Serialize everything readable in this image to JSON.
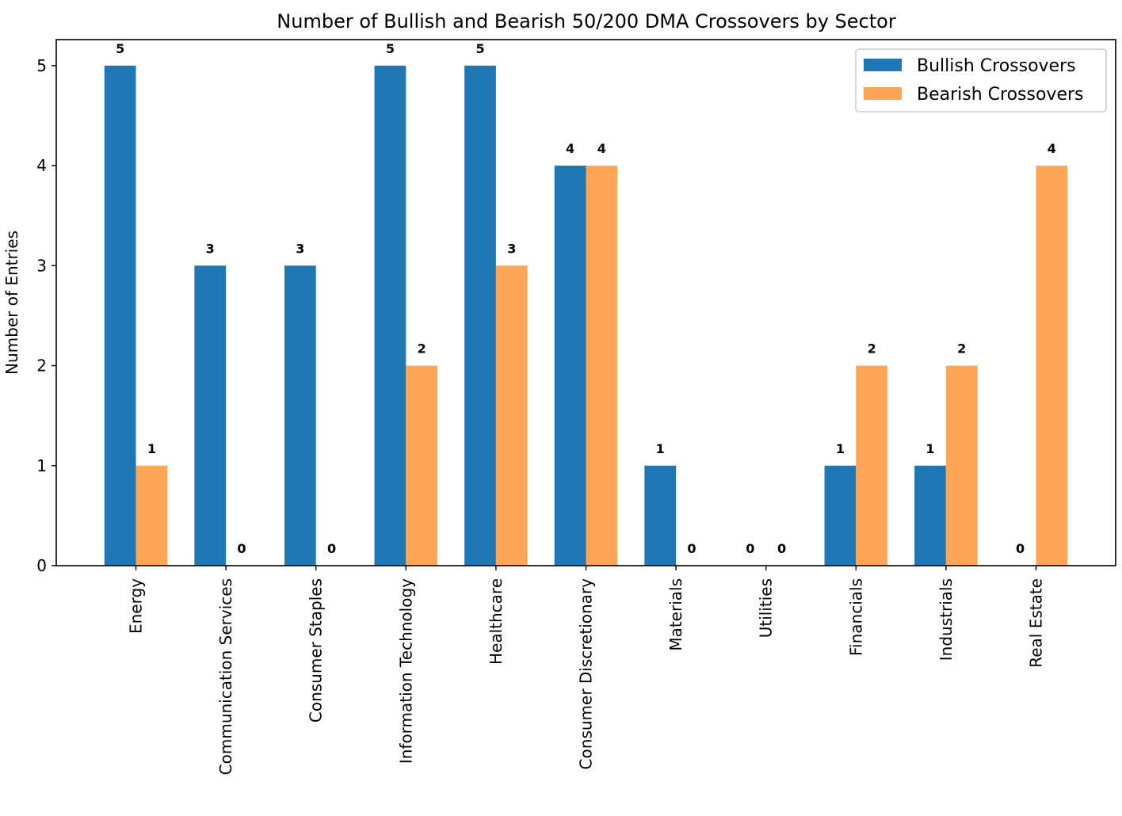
{
  "chart_data": {
    "type": "bar",
    "title": "Number of Bullish and Bearish 50/200 DMA Crossovers by Sector",
    "xlabel": "",
    "ylabel": "Number of Entries",
    "categories": [
      "Energy",
      "Communication Services",
      "Consumer Staples",
      "Information Technology",
      "Healthcare",
      "Consumer Discretionary",
      "Materials",
      "Utilities",
      "Financials",
      "Industrials",
      "Real Estate"
    ],
    "series": [
      {
        "name": "Bullish Crossovers",
        "color": "#1f77b4",
        "values": [
          5,
          3,
          3,
          5,
          5,
          4,
          1,
          0,
          1,
          1,
          0
        ]
      },
      {
        "name": "Bearish Crossovers",
        "color": "#ffa556",
        "values": [
          1,
          0,
          0,
          2,
          3,
          4,
          0,
          0,
          2,
          2,
          4
        ]
      }
    ],
    "ylim": [
      0,
      5.26
    ],
    "yticks": [
      0,
      1,
      2,
      3,
      4,
      5
    ],
    "grid": false,
    "legend": "top-right",
    "data_labels": true
  }
}
